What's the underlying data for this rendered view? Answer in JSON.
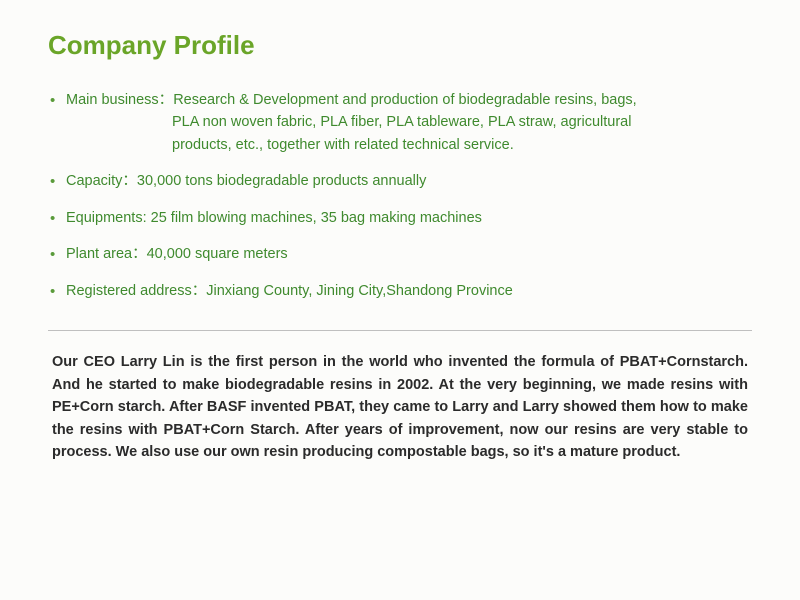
{
  "colors": {
    "title": "#6aa528",
    "bullet_text": "#3f8a2e",
    "bullet_marker": "#5a9b3a",
    "body_text": "#2b2b2b",
    "divider": "#bfbfbf",
    "background": "#fcfcfa"
  },
  "typography": {
    "title_fontsize": 26,
    "bullet_fontsize": 14.5,
    "paragraph_fontsize": 14.5,
    "paragraph_font": "Comic Sans MS"
  },
  "title": "Company Profile",
  "bullets": [
    {
      "label": "Main business：",
      "value_line1": "Research & Development and production of biodegradable resins, bags,",
      "value_line2": "PLA non woven fabric, PLA fiber,  PLA tableware, PLA straw,  agricultural",
      "value_line3": "products, etc., together with related technical service."
    },
    {
      "label": "Capacity：",
      "value": "30,000 tons biodegradable products annually"
    },
    {
      "label": "Equipments:  ",
      "value": "25 film blowing machines, 35 bag making machines"
    },
    {
      "label": "Plant area：",
      "value": "40,000 square meters"
    },
    {
      "label": "Registered address：",
      "value": "Jinxiang County, Jining City,Shandong Province"
    }
  ],
  "paragraph": "Our CEO Larry Lin is the first person in the world who invented the formula of PBAT+Cornstarch. And he started to make biodegradable resins in 2002. At the very beginning, we made resins with PE+Corn starch. After BASF invented PBAT, they came to Larry and Larry showed them how to make the resins with PBAT+Corn Starch. After years of improvement, now our resins are very stable to process. We also use our own resin producing compostable bags, so it's a mature product."
}
